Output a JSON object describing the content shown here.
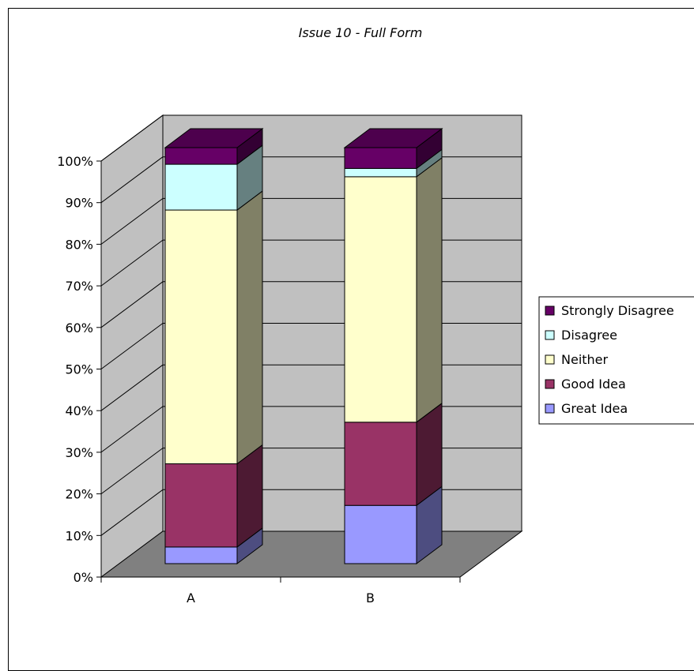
{
  "chart_data": {
    "type": "bar",
    "stacked": true,
    "percent_stacked": true,
    "three_d": true,
    "title": "Issue 10 - Full Form",
    "categories": [
      "A",
      "B"
    ],
    "series": [
      {
        "name": "Great Idea",
        "values": [
          4,
          14
        ],
        "color": "#9999ff"
      },
      {
        "name": "Good Idea",
        "values": [
          20,
          20
        ],
        "color": "#993366"
      },
      {
        "name": "Neither",
        "values": [
          61,
          59
        ],
        "color": "#ffffcc"
      },
      {
        "name": "Disagree",
        "values": [
          11,
          2
        ],
        "color": "#ccffff"
      },
      {
        "name": "Strongly Disagree",
        "values": [
          4,
          5
        ],
        "color": "#660066"
      }
    ],
    "yticks": [
      "0%",
      "10%",
      "20%",
      "30%",
      "40%",
      "50%",
      "60%",
      "70%",
      "80%",
      "90%",
      "100%"
    ],
    "ylim": [
      0,
      100
    ],
    "grid": true,
    "legend_position": "right",
    "colors": {
      "walls": "#c0c0c0",
      "floor": "#808080"
    }
  }
}
